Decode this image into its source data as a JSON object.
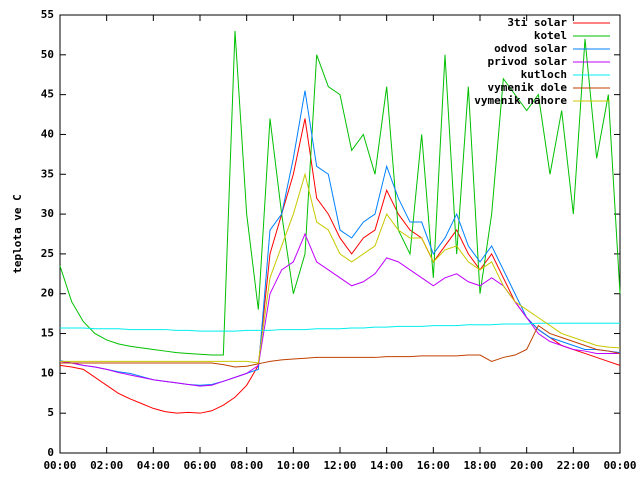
{
  "chart_data": {
    "type": "line",
    "y_label": "teplota ve C",
    "x": [
      0,
      0.5,
      1,
      1.5,
      2,
      2.5,
      3,
      3.5,
      4,
      4.5,
      5,
      5.5,
      6,
      6.5,
      7,
      7.5,
      8,
      8.5,
      9,
      9.5,
      10,
      10.5,
      11,
      11.5,
      12,
      12.5,
      13,
      13.5,
      14,
      14.5,
      15,
      15.5,
      16,
      16.5,
      17,
      17.5,
      18,
      18.5,
      19,
      19.5,
      20,
      20.5,
      21,
      21.5,
      22,
      22.5,
      23,
      23.5,
      24
    ],
    "xlim": [
      0,
      24
    ],
    "xticks": [
      {
        "value": 0,
        "label": "00:00"
      },
      {
        "value": 2,
        "label": "02:00"
      },
      {
        "value": 4,
        "label": "04:00"
      },
      {
        "value": 6,
        "label": "06:00"
      },
      {
        "value": 8,
        "label": "08:00"
      },
      {
        "value": 10,
        "label": "10:00"
      },
      {
        "value": 12,
        "label": "12:00"
      },
      {
        "value": 14,
        "label": "14:00"
      },
      {
        "value": 16,
        "label": "16:00"
      },
      {
        "value": 18,
        "label": "18:00"
      },
      {
        "value": 20,
        "label": "20:00"
      },
      {
        "value": 22,
        "label": "22:00"
      },
      {
        "value": 24,
        "label": "00:00"
      }
    ],
    "ylim": [
      0,
      55
    ],
    "yticks": [
      0,
      5,
      10,
      15,
      20,
      25,
      30,
      35,
      40,
      45,
      50,
      55
    ],
    "grid": false,
    "legend": "top-right",
    "series": [
      {
        "name": "3ti solar",
        "color": "#ff0000",
        "values": [
          11,
          10.8,
          10.5,
          9.5,
          8.5,
          7.5,
          6.8,
          6.2,
          5.6,
          5.2,
          5,
          5.1,
          5,
          5.3,
          6,
          7,
          8.5,
          11,
          25,
          30,
          35,
          42,
          32,
          30,
          27,
          25,
          27,
          28,
          33,
          30,
          28,
          27,
          24,
          26,
          28,
          25,
          23,
          25,
          22,
          19,
          17,
          15.5,
          14.5,
          13.5,
          13,
          12.5,
          12,
          11.5,
          11
        ]
      },
      {
        "name": "kotel",
        "color": "#00c000",
        "values": [
          23.5,
          19,
          16.5,
          15,
          14.2,
          13.7,
          13.4,
          13.2,
          13,
          12.8,
          12.6,
          12.5,
          12.4,
          12.3,
          12.3,
          53,
          30,
          18,
          42,
          30,
          20,
          25,
          50,
          46,
          45,
          38,
          40,
          35,
          46,
          28,
          25,
          40,
          22,
          50,
          25,
          46,
          20,
          30,
          47,
          45,
          43,
          45,
          35,
          43,
          30,
          52,
          37,
          45,
          20
        ]
      },
      {
        "name": "odvod solar",
        "color": "#0080ff",
        "values": [
          11.6,
          11.3,
          11,
          10.8,
          10.5,
          10.2,
          10,
          9.6,
          9.2,
          9,
          8.8,
          8.6,
          8.5,
          8.6,
          9,
          9.5,
          10,
          10.5,
          28,
          30,
          37,
          45.5,
          36,
          35,
          28,
          27,
          29,
          30,
          36,
          32,
          29,
          29,
          25,
          27,
          30,
          26,
          24,
          26,
          23,
          20,
          17,
          15.5,
          14.5,
          14,
          13.5,
          13,
          13,
          12.8,
          12.6
        ]
      },
      {
        "name": "privod solar",
        "color": "#c000ff",
        "values": [
          11.5,
          11.3,
          11,
          10.8,
          10.5,
          10.1,
          9.8,
          9.5,
          9.2,
          9,
          8.8,
          8.6,
          8.4,
          8.5,
          9,
          9.5,
          10,
          11,
          20,
          23,
          24,
          27.5,
          24,
          23,
          22,
          21,
          21.5,
          22.5,
          24.5,
          24,
          23,
          22,
          21,
          22,
          22.5,
          21.5,
          21,
          22,
          21,
          19,
          17,
          15,
          14,
          13.5,
          13,
          12.8,
          12.5,
          12.5,
          12.5
        ]
      },
      {
        "name": "kutloch",
        "color": "#00eeee",
        "values": [
          15.7,
          15.7,
          15.7,
          15.6,
          15.6,
          15.6,
          15.5,
          15.5,
          15.5,
          15.5,
          15.4,
          15.4,
          15.3,
          15.3,
          15.3,
          15.3,
          15.4,
          15.4,
          15.4,
          15.5,
          15.5,
          15.5,
          15.6,
          15.6,
          15.6,
          15.7,
          15.7,
          15.8,
          15.8,
          15.9,
          15.9,
          15.9,
          16,
          16,
          16,
          16.1,
          16.1,
          16.1,
          16.2,
          16.2,
          16.2,
          16.3,
          16.3,
          16.3,
          16.3,
          16.3,
          16.3,
          16.3,
          16.3
        ]
      },
      {
        "name": "vymenik dole",
        "color": "#c04000",
        "values": [
          11.3,
          11.3,
          11.3,
          11.3,
          11.3,
          11.3,
          11.3,
          11.3,
          11.3,
          11.3,
          11.3,
          11.3,
          11.3,
          11.3,
          11.1,
          10.8,
          10.9,
          11.2,
          11.5,
          11.7,
          11.8,
          11.9,
          12,
          12,
          12,
          12,
          12,
          12,
          12.1,
          12.1,
          12.1,
          12.2,
          12.2,
          12.2,
          12.2,
          12.3,
          12.3,
          11.5,
          12,
          12.3,
          13,
          16,
          15,
          14.5,
          14,
          13.5,
          13,
          12.8,
          12.5
        ]
      },
      {
        "name": "vymenik nahore",
        "color": "#c8c800",
        "values": [
          11.5,
          11.5,
          11.5,
          11.5,
          11.5,
          11.5,
          11.5,
          11.5,
          11.5,
          11.5,
          11.5,
          11.5,
          11.5,
          11.5,
          11.5,
          11.5,
          11.5,
          11.3,
          22,
          26,
          30,
          35,
          29,
          28,
          25,
          24,
          25,
          26,
          30,
          28,
          27,
          27,
          24,
          25.5,
          26,
          24,
          23,
          24,
          21,
          19,
          18,
          17,
          16,
          15,
          14.5,
          14,
          13.5,
          13.3,
          13.2
        ]
      }
    ]
  }
}
